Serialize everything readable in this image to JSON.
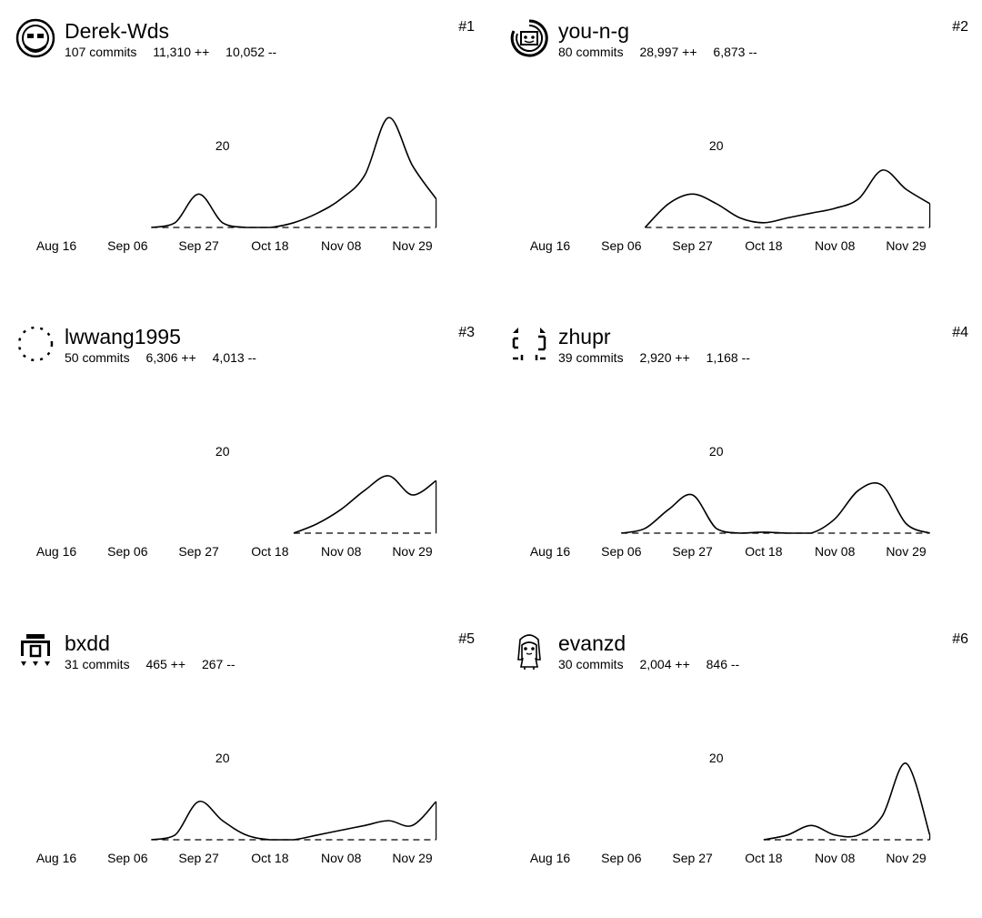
{
  "contributors": [
    {
      "login": "Derek-Wds",
      "commits": "107 commits",
      "additions": "11,310 ++",
      "deletions": "10,052 --",
      "rank": "#1",
      "avatar_icon": "bearded-face-avatar-icon",
      "chart_data": {
        "type": "area",
        "x": [
          "Aug 16",
          "Aug 23",
          "Aug 30",
          "Sep 06",
          "Sep 13",
          "Sep 20",
          "Sep 27",
          "Oct 04",
          "Oct 11",
          "Oct 18",
          "Oct 25",
          "Nov 01",
          "Nov 08",
          "Nov 15",
          "Nov 22",
          "Nov 29",
          "Dec 06"
        ],
        "values": [
          null,
          null,
          null,
          null,
          0,
          1,
          7,
          1,
          0,
          0,
          1,
          3,
          6,
          11,
          23,
          13,
          6
        ],
        "y_tick": 20,
        "ylim": [
          0,
          25
        ],
        "x_tick_labels": [
          "Aug 16",
          "Sep 06",
          "Sep 27",
          "Oct 18",
          "Nov 08",
          "Nov 29"
        ],
        "grid": false
      }
    },
    {
      "login": "you-n-g",
      "commits": "80 commits",
      "additions": "28,997 ++",
      "deletions": "6,873 --",
      "rank": "#2",
      "avatar_icon": "spiral-face-avatar-icon",
      "chart_data": {
        "type": "area",
        "x": [
          "Aug 16",
          "Aug 23",
          "Aug 30",
          "Sep 06",
          "Sep 13",
          "Sep 20",
          "Sep 27",
          "Oct 04",
          "Oct 11",
          "Oct 18",
          "Oct 25",
          "Nov 01",
          "Nov 08",
          "Nov 15",
          "Nov 22",
          "Nov 29",
          "Dec 06"
        ],
        "values": [
          null,
          null,
          null,
          null,
          0,
          5,
          7,
          5,
          2,
          1,
          2,
          3,
          4,
          6,
          12,
          8,
          5
        ],
        "y_tick": 20,
        "ylim": [
          0,
          25
        ],
        "x_tick_labels": [
          "Aug 16",
          "Sep 06",
          "Sep 27",
          "Oct 18",
          "Nov 08",
          "Nov 29"
        ],
        "grid": false
      }
    },
    {
      "login": "lwwang1995",
      "commits": "50 commits",
      "additions": "6,306 ++",
      "deletions": "4,013 --",
      "rank": "#3",
      "avatar_icon": "dotted-circle-avatar-icon",
      "chart_data": {
        "type": "area",
        "x": [
          "Aug 16",
          "Aug 23",
          "Aug 30",
          "Sep 06",
          "Sep 13",
          "Sep 20",
          "Sep 27",
          "Oct 04",
          "Oct 11",
          "Oct 18",
          "Oct 25",
          "Nov 01",
          "Nov 08",
          "Nov 15",
          "Nov 22",
          "Nov 29",
          "Dec 06"
        ],
        "values": [
          null,
          null,
          null,
          null,
          null,
          null,
          null,
          null,
          null,
          null,
          0,
          2,
          5,
          9,
          12,
          8,
          11
        ],
        "y_tick": 20,
        "ylim": [
          0,
          25
        ],
        "x_tick_labels": [
          "Aug 16",
          "Sep 06",
          "Sep 27",
          "Oct 18",
          "Nov 08",
          "Nov 29"
        ],
        "grid": false
      }
    },
    {
      "login": "zhupr",
      "commits": "39 commits",
      "additions": "2,920 ++",
      "deletions": "1,168 --",
      "rank": "#4",
      "avatar_icon": "corner-brackets-avatar-icon",
      "chart_data": {
        "type": "area",
        "x": [
          "Aug 16",
          "Aug 23",
          "Aug 30",
          "Sep 06",
          "Sep 13",
          "Sep 20",
          "Sep 27",
          "Oct 04",
          "Oct 11",
          "Oct 18",
          "Oct 25",
          "Nov 01",
          "Nov 08",
          "Nov 15",
          "Nov 22",
          "Nov 29",
          "Dec 06"
        ],
        "values": [
          null,
          null,
          null,
          0,
          1,
          5,
          8,
          1,
          0,
          0.2,
          0,
          0,
          3,
          9,
          10,
          2,
          0
        ],
        "y_tick": 20,
        "ylim": [
          0,
          25
        ],
        "x_tick_labels": [
          "Aug 16",
          "Sep 06",
          "Sep 27",
          "Oct 18",
          "Nov 08",
          "Nov 29"
        ],
        "grid": false
      }
    },
    {
      "login": "bxdd",
      "commits": "31 commits",
      "additions": "465 ++",
      "deletions": "267 --",
      "rank": "#5",
      "avatar_icon": "pixel-building-avatar-icon",
      "chart_data": {
        "type": "area",
        "x": [
          "Aug 16",
          "Aug 23",
          "Aug 30",
          "Sep 06",
          "Sep 13",
          "Sep 20",
          "Sep 27",
          "Oct 04",
          "Oct 11",
          "Oct 18",
          "Oct 25",
          "Nov 01",
          "Nov 08",
          "Nov 15",
          "Nov 22",
          "Nov 29",
          "Dec 06"
        ],
        "values": [
          null,
          null,
          null,
          null,
          0,
          1,
          8,
          4,
          1,
          0,
          0,
          1,
          2,
          3,
          4,
          3,
          8
        ],
        "y_tick": 20,
        "ylim": [
          0,
          25
        ],
        "x_tick_labels": [
          "Aug 16",
          "Sep 06",
          "Sep 27",
          "Oct 18",
          "Nov 08",
          "Nov 29"
        ],
        "grid": false
      }
    },
    {
      "login": "evanzd",
      "commits": "30 commits",
      "additions": "2,004 ++",
      "deletions": "846 --",
      "rank": "#6",
      "avatar_icon": "anime-girl-avatar-icon",
      "chart_data": {
        "type": "area",
        "x": [
          "Aug 16",
          "Aug 23",
          "Aug 30",
          "Sep 06",
          "Sep 13",
          "Sep 20",
          "Sep 27",
          "Oct 04",
          "Oct 11",
          "Oct 18",
          "Oct 25",
          "Nov 01",
          "Nov 08",
          "Nov 15",
          "Nov 22",
          "Nov 29",
          "Dec 06"
        ],
        "values": [
          null,
          null,
          null,
          null,
          null,
          null,
          null,
          null,
          null,
          0,
          1,
          3,
          1,
          1,
          5,
          16,
          1
        ],
        "y_tick": 20,
        "ylim": [
          0,
          25
        ],
        "x_tick_labels": [
          "Aug 16",
          "Sep 06",
          "Sep 27",
          "Oct 18",
          "Nov 08",
          "Nov 29"
        ],
        "grid": false
      }
    }
  ]
}
